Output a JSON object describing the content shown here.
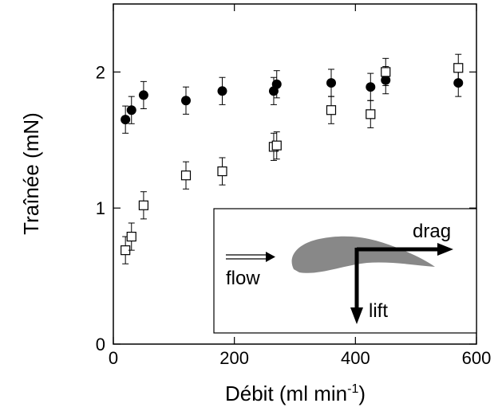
{
  "chart_data": {
    "type": "scatter",
    "xlabel": "Débit (ml min",
    "xlabel_sup": "-1",
    "xlabel_end": ")",
    "ylabel": "Traînée (mN)",
    "xlim": [
      0,
      600
    ],
    "xticks": [
      0,
      200,
      400,
      600
    ],
    "ylim": [
      0,
      2.5
    ],
    "yticks": [
      0,
      1,
      2
    ],
    "series": [
      {
        "marker": "circle",
        "color": "#000000",
        "x": [
          20,
          30,
          50,
          120,
          180,
          265,
          270,
          360,
          425,
          450,
          570
        ],
        "values": [
          1.65,
          1.72,
          1.83,
          1.79,
          1.86,
          1.86,
          1.91,
          1.92,
          1.89,
          1.94,
          1.92
        ],
        "errors": [
          0.1,
          0.1,
          0.1,
          0.1,
          0.1,
          0.1,
          0.1,
          0.1,
          0.1,
          0.1,
          0.1
        ]
      },
      {
        "marker": "square",
        "color": "#000000",
        "x": [
          20,
          30,
          50,
          120,
          180,
          265,
          270,
          360,
          425,
          450,
          570
        ],
        "values": [
          0.69,
          0.79,
          1.02,
          1.24,
          1.27,
          1.45,
          1.46,
          1.72,
          1.69,
          2.0,
          2.03
        ],
        "errors": [
          0.1,
          0.1,
          0.1,
          0.1,
          0.1,
          0.1,
          0.1,
          0.1,
          0.1,
          0.1,
          0.1
        ]
      }
    ],
    "inset": {
      "labels": [
        "flow",
        "drag",
        "lift"
      ]
    }
  }
}
